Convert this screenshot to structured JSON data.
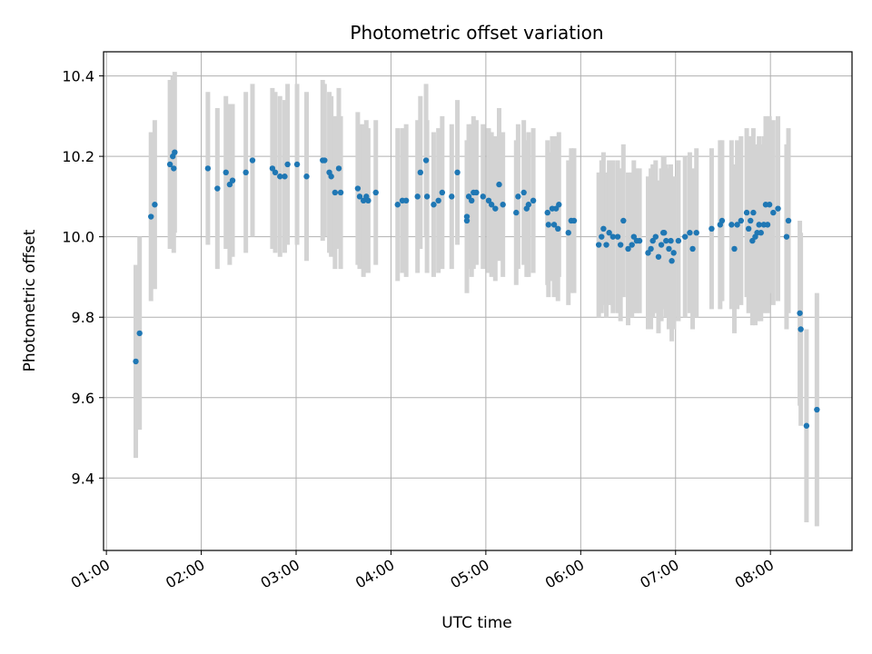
{
  "chart_data": {
    "type": "scatter",
    "title": "Photometric offset variation",
    "xlabel": "UTC time",
    "ylabel": "Photometric offset",
    "x_unit": "UTC hours",
    "xlim": [
      0.97,
      8.86
    ],
    "ylim": [
      9.22,
      10.46
    ],
    "x_ticks": [
      {
        "value": 1,
        "label": "01:00"
      },
      {
        "value": 2,
        "label": "02:00"
      },
      {
        "value": 3,
        "label": "03:00"
      },
      {
        "value": 4,
        "label": "04:00"
      },
      {
        "value": 5,
        "label": "05:00"
      },
      {
        "value": 6,
        "label": "06:00"
      },
      {
        "value": 7,
        "label": "07:00"
      },
      {
        "value": 8,
        "label": "08:00"
      }
    ],
    "y_ticks": [
      {
        "value": 9.4,
        "label": "9.4"
      },
      {
        "value": 9.6,
        "label": "9.6"
      },
      {
        "value": 9.8,
        "label": "9.8"
      },
      {
        "value": 10.0,
        "label": "10.0"
      },
      {
        "value": 10.2,
        "label": "10.2"
      },
      {
        "value": 10.4,
        "label": "10.4"
      }
    ],
    "grid": true,
    "legend": "none",
    "colors": {
      "marker": "#1f77b4",
      "errorbar": "#d3d3d3",
      "grid": "#b0b0b0"
    },
    "series": [
      {
        "points": [
          [
            1.31,
            9.69,
            0.24
          ],
          [
            1.35,
            9.76,
            0.24
          ],
          [
            1.47,
            10.05,
            0.21
          ],
          [
            1.51,
            10.08,
            0.21
          ],
          [
            1.67,
            10.18,
            0.21
          ],
          [
            1.7,
            10.2,
            0.2
          ],
          [
            1.72,
            10.21,
            0.2
          ],
          [
            1.71,
            10.17,
            0.21
          ],
          [
            2.07,
            10.17,
            0.19
          ],
          [
            2.17,
            10.12,
            0.2
          ],
          [
            2.26,
            10.16,
            0.19
          ],
          [
            2.3,
            10.13,
            0.2
          ],
          [
            2.33,
            10.14,
            0.19
          ],
          [
            2.47,
            10.16,
            0.2
          ],
          [
            2.54,
            10.19,
            0.19
          ],
          [
            2.75,
            10.17,
            0.2
          ],
          [
            2.78,
            10.16,
            0.2
          ],
          [
            2.83,
            10.15,
            0.2
          ],
          [
            2.88,
            10.15,
            0.19
          ],
          [
            2.91,
            10.18,
            0.2
          ],
          [
            3.01,
            10.18,
            0.2
          ],
          [
            3.11,
            10.15,
            0.21
          ],
          [
            3.28,
            10.19,
            0.2
          ],
          [
            3.3,
            10.19,
            0.19
          ],
          [
            3.35,
            10.16,
            0.2
          ],
          [
            3.37,
            10.15,
            0.2
          ],
          [
            3.41,
            10.11,
            0.19
          ],
          [
            3.45,
            10.17,
            0.2
          ],
          [
            3.47,
            10.11,
            0.19
          ],
          [
            3.65,
            10.12,
            0.19
          ],
          [
            3.67,
            10.1,
            0.18
          ],
          [
            3.71,
            10.09,
            0.19
          ],
          [
            3.74,
            10.1,
            0.19
          ],
          [
            3.76,
            10.09,
            0.18
          ],
          [
            3.84,
            10.11,
            0.18
          ],
          [
            4.07,
            10.08,
            0.19
          ],
          [
            4.12,
            10.09,
            0.18
          ],
          [
            4.16,
            10.09,
            0.19
          ],
          [
            4.28,
            10.1,
            0.19
          ],
          [
            4.31,
            10.16,
            0.19
          ],
          [
            4.37,
            10.19,
            0.19
          ],
          [
            4.38,
            10.1,
            0.19
          ],
          [
            4.45,
            10.08,
            0.18
          ],
          [
            4.5,
            10.09,
            0.18
          ],
          [
            4.54,
            10.11,
            0.19
          ],
          [
            4.64,
            10.1,
            0.18
          ],
          [
            4.7,
            10.16,
            0.18
          ],
          [
            4.8,
            10.05,
            0.19
          ],
          [
            4.8,
            10.04,
            0.18
          ],
          [
            4.82,
            10.1,
            0.18
          ],
          [
            4.85,
            10.09,
            0.19
          ],
          [
            4.87,
            10.11,
            0.19
          ],
          [
            4.9,
            10.11,
            0.18
          ],
          [
            4.97,
            10.1,
            0.18
          ],
          [
            5.03,
            10.09,
            0.18
          ],
          [
            5.06,
            10.08,
            0.18
          ],
          [
            5.1,
            10.07,
            0.18
          ],
          [
            5.14,
            10.13,
            0.19
          ],
          [
            5.18,
            10.08,
            0.18
          ],
          [
            5.32,
            10.06,
            0.18
          ],
          [
            5.34,
            10.1,
            0.18
          ],
          [
            5.4,
            10.11,
            0.18
          ],
          [
            5.43,
            10.07,
            0.17
          ],
          [
            5.45,
            10.08,
            0.18
          ],
          [
            5.5,
            10.09,
            0.18
          ],
          [
            5.65,
            10.06,
            0.18
          ],
          [
            5.66,
            10.03,
            0.18
          ],
          [
            5.7,
            10.07,
            0.18
          ],
          [
            5.72,
            10.03,
            0.18
          ],
          [
            5.74,
            10.07,
            0.18
          ],
          [
            5.77,
            10.08,
            0.18
          ],
          [
            5.76,
            10.02,
            0.18
          ],
          [
            5.87,
            10.01,
            0.18
          ],
          [
            5.9,
            10.04,
            0.18
          ],
          [
            5.93,
            10.04,
            0.18
          ],
          [
            6.19,
            9.98,
            0.18
          ],
          [
            6.22,
            10.0,
            0.19
          ],
          [
            6.24,
            10.02,
            0.19
          ],
          [
            6.27,
            9.98,
            0.18
          ],
          [
            6.3,
            10.01,
            0.18
          ],
          [
            6.34,
            10.0,
            0.19
          ],
          [
            6.39,
            10.0,
            0.19
          ],
          [
            6.42,
            9.98,
            0.19
          ],
          [
            6.45,
            10.04,
            0.19
          ],
          [
            6.5,
            9.97,
            0.19
          ],
          [
            6.54,
            9.98,
            0.18
          ],
          [
            6.56,
            10.0,
            0.19
          ],
          [
            6.59,
            9.99,
            0.18
          ],
          [
            6.62,
            9.99,
            0.18
          ],
          [
            6.71,
            9.96,
            0.19
          ],
          [
            6.74,
            9.97,
            0.2
          ],
          [
            6.76,
            9.99,
            0.19
          ],
          [
            6.79,
            10.0,
            0.19
          ],
          [
            6.82,
            9.95,
            0.19
          ],
          [
            6.85,
            9.98,
            0.19
          ],
          [
            6.87,
            10.01,
            0.19
          ],
          [
            6.88,
            10.01,
            0.19
          ],
          [
            6.9,
            9.99,
            0.19
          ],
          [
            6.93,
            9.97,
            0.2
          ],
          [
            6.95,
            9.99,
            0.19
          ],
          [
            6.96,
            9.94,
            0.2
          ],
          [
            6.98,
            9.96,
            0.19
          ],
          [
            7.03,
            9.99,
            0.2
          ],
          [
            7.1,
            10.0,
            0.2
          ],
          [
            7.15,
            10.01,
            0.2
          ],
          [
            7.18,
            9.97,
            0.2
          ],
          [
            7.22,
            10.01,
            0.21
          ],
          [
            7.38,
            10.02,
            0.2
          ],
          [
            7.47,
            10.03,
            0.21
          ],
          [
            7.49,
            10.04,
            0.2
          ],
          [
            7.59,
            10.03,
            0.21
          ],
          [
            7.62,
            9.97,
            0.21
          ],
          [
            7.65,
            10.03,
            0.21
          ],
          [
            7.69,
            10.04,
            0.21
          ],
          [
            7.75,
            10.06,
            0.21
          ],
          [
            7.77,
            10.02,
            0.21
          ],
          [
            7.79,
            10.04,
            0.21
          ],
          [
            7.81,
            9.99,
            0.21
          ],
          [
            7.82,
            10.06,
            0.21
          ],
          [
            7.84,
            10.0,
            0.22
          ],
          [
            7.86,
            10.01,
            0.22
          ],
          [
            7.88,
            10.03,
            0.22
          ],
          [
            7.9,
            10.01,
            0.22
          ],
          [
            7.93,
            10.03,
            0.22
          ],
          [
            7.95,
            10.08,
            0.22
          ],
          [
            7.97,
            10.03,
            0.22
          ],
          [
            7.99,
            10.08,
            0.22
          ],
          [
            8.03,
            10.06,
            0.23
          ],
          [
            8.08,
            10.07,
            0.23
          ],
          [
            8.19,
            10.04,
            0.23
          ],
          [
            8.17,
            10.0,
            0.23
          ],
          [
            8.31,
            9.81,
            0.23
          ],
          [
            8.32,
            9.77,
            0.24
          ],
          [
            8.38,
            9.53,
            0.24
          ],
          [
            8.49,
            9.57,
            0.29
          ]
        ]
      }
    ]
  }
}
